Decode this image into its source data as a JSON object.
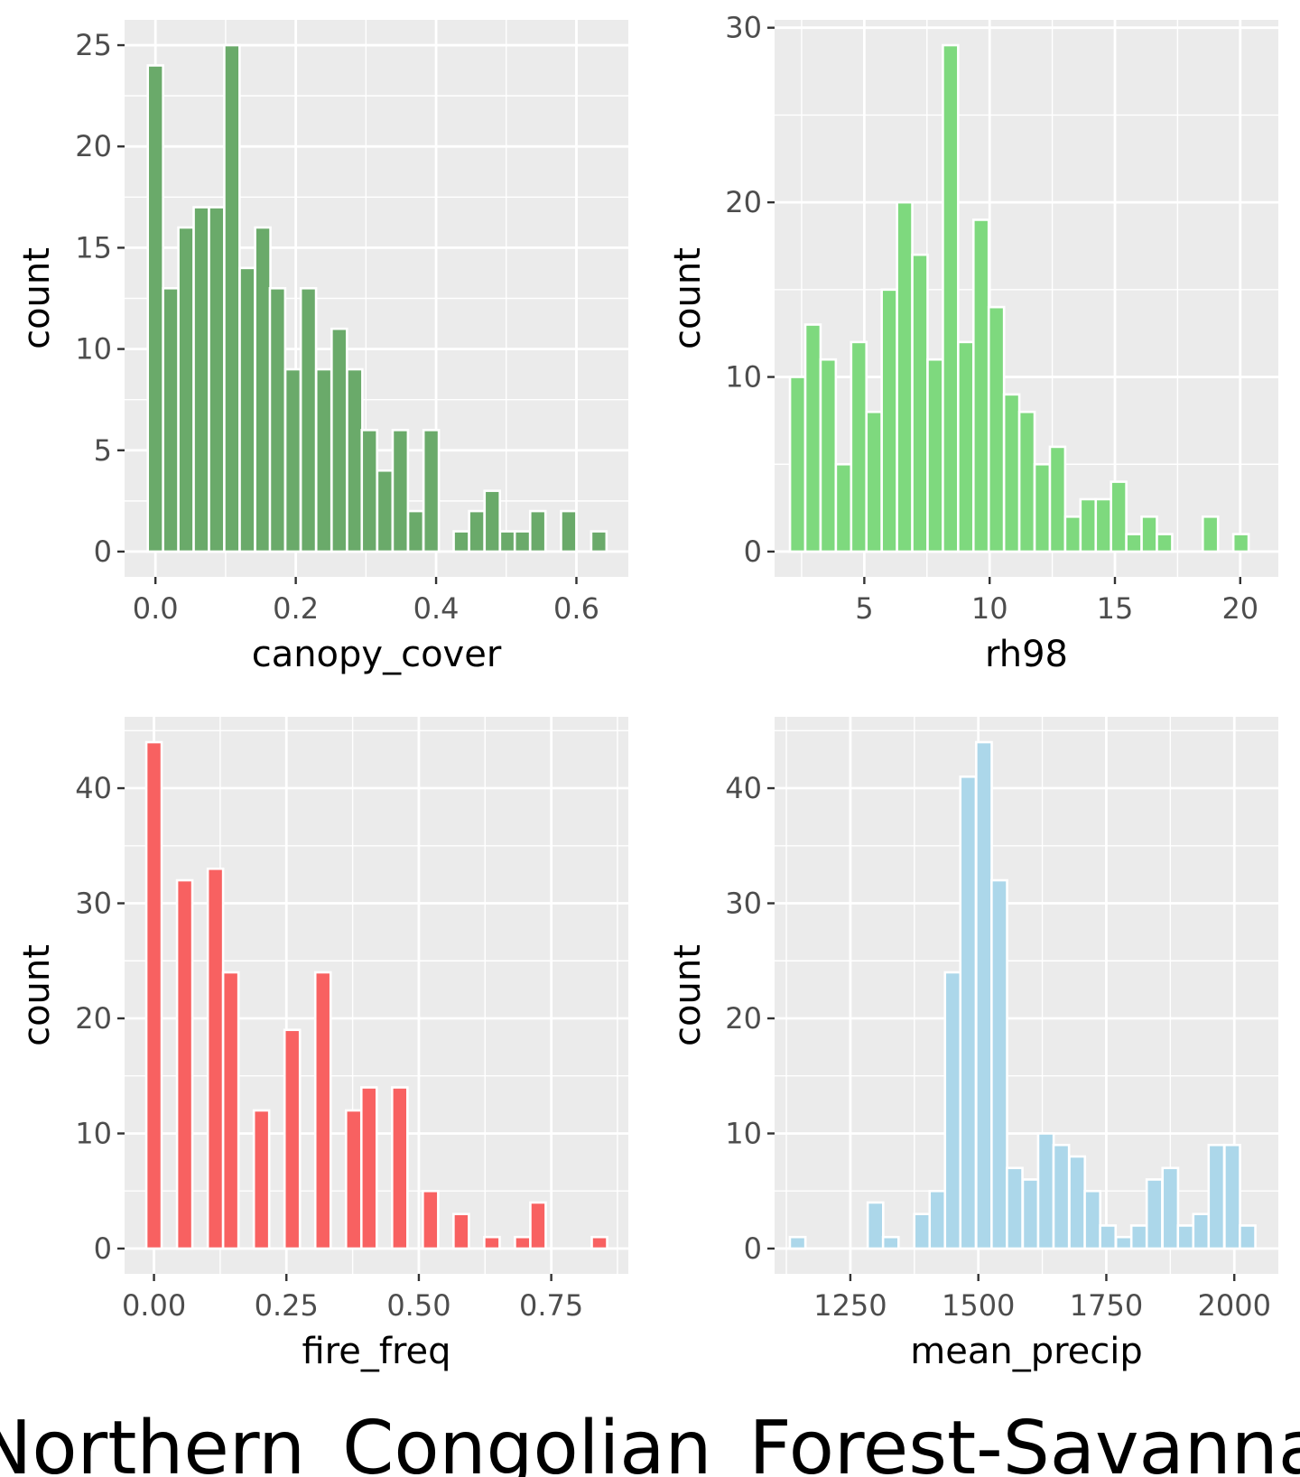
{
  "figure": {
    "title": "Northern_Congolian_Forest-Savanna"
  },
  "colors": {
    "panel_background": "#ebebeb",
    "grid": "#ffffff",
    "bar_outline": "#ffffff"
  },
  "chart_data": [
    {
      "type": "bar",
      "id": "canopy_cover",
      "xlabel": "canopy_cover",
      "ylabel": "count",
      "fill": "#6aaa6a",
      "xlim": [
        -0.044,
        0.674
      ],
      "ylim": [
        -1.25,
        26.25
      ],
      "xticks": [
        0,
        0.2,
        0.4,
        0.6
      ],
      "xtick_labels": [
        "0.0",
        "0.2",
        "0.4",
        "0.6"
      ],
      "yticks": [
        0,
        5,
        10,
        15,
        20,
        25
      ],
      "ytick_labels": [
        "0",
        "5",
        "10",
        "15",
        "20",
        "25"
      ],
      "bin_width": 0.0218,
      "bins": [
        [
          0.0,
          24
        ],
        [
          0.0218,
          13
        ],
        [
          0.0436,
          16
        ],
        [
          0.0654,
          17
        ],
        [
          0.0872,
          17
        ],
        [
          0.109,
          25
        ],
        [
          0.131,
          14
        ],
        [
          0.153,
          16
        ],
        [
          0.174,
          13
        ],
        [
          0.196,
          9
        ],
        [
          0.218,
          13
        ],
        [
          0.24,
          9
        ],
        [
          0.262,
          11
        ],
        [
          0.284,
          9
        ],
        [
          0.305,
          6
        ],
        [
          0.327,
          4
        ],
        [
          0.349,
          6
        ],
        [
          0.371,
          2
        ],
        [
          0.393,
          6
        ],
        [
          0.414,
          0
        ],
        [
          0.436,
          1
        ],
        [
          0.458,
          2
        ],
        [
          0.48,
          3
        ],
        [
          0.502,
          1
        ],
        [
          0.523,
          1
        ],
        [
          0.545,
          2
        ],
        [
          0.567,
          0
        ],
        [
          0.589,
          2
        ],
        [
          0.611,
          0
        ],
        [
          0.632,
          1
        ]
      ]
    },
    {
      "type": "bar",
      "id": "rh98",
      "xlabel": "rh98",
      "ylabel": "count",
      "fill": "#7ed97e",
      "xlim": [
        1.42,
        21.52
      ],
      "ylim": [
        -1.45,
        30.45
      ],
      "xticks": [
        5,
        10,
        15,
        20
      ],
      "xtick_labels": [
        "5",
        "10",
        "15",
        "20"
      ],
      "yticks": [
        0,
        10,
        20,
        30
      ],
      "ytick_labels": [
        "0",
        "10",
        "20",
        "30"
      ],
      "bin_width": 0.61,
      "bins": [
        [
          2.34,
          10
        ],
        [
          2.95,
          13
        ],
        [
          3.56,
          11
        ],
        [
          4.17,
          5
        ],
        [
          4.78,
          12
        ],
        [
          5.39,
          8
        ],
        [
          6.0,
          15
        ],
        [
          6.61,
          20
        ],
        [
          7.22,
          17
        ],
        [
          7.83,
          11
        ],
        [
          8.44,
          29
        ],
        [
          9.05,
          12
        ],
        [
          9.66,
          19
        ],
        [
          10.27,
          14
        ],
        [
          10.88,
          9
        ],
        [
          11.49,
          8
        ],
        [
          12.1,
          5
        ],
        [
          12.71,
          6
        ],
        [
          13.32,
          2
        ],
        [
          13.93,
          3
        ],
        [
          14.54,
          3
        ],
        [
          15.15,
          4
        ],
        [
          15.76,
          1
        ],
        [
          16.37,
          2
        ],
        [
          16.98,
          1
        ],
        [
          17.59,
          0
        ],
        [
          18.2,
          0
        ],
        [
          18.81,
          2
        ],
        [
          19.42,
          0
        ],
        [
          20.03,
          1
        ]
      ]
    },
    {
      "type": "bar",
      "id": "fire_freq",
      "xlabel": "fire_freq",
      "ylabel": "count",
      "fill": "#f86161",
      "xlim": [
        -0.0555,
        0.8955
      ],
      "ylim": [
        -2.2,
        46.2
      ],
      "xticks": [
        0,
        0.25,
        0.5,
        0.75
      ],
      "xtick_labels": [
        "0.00",
        "0.25",
        "0.50",
        "0.75"
      ],
      "yticks": [
        0,
        10,
        20,
        30,
        40
      ],
      "ytick_labels": [
        "0",
        "10",
        "20",
        "30",
        "40"
      ],
      "bin_width": 0.029,
      "bins": [
        [
          0.0,
          44
        ],
        [
          0.029,
          0
        ],
        [
          0.058,
          32
        ],
        [
          0.087,
          0
        ],
        [
          0.116,
          33
        ],
        [
          0.145,
          24
        ],
        [
          0.174,
          0
        ],
        [
          0.203,
          12
        ],
        [
          0.232,
          0
        ],
        [
          0.261,
          19
        ],
        [
          0.29,
          0
        ],
        [
          0.319,
          24
        ],
        [
          0.348,
          0
        ],
        [
          0.377,
          12
        ],
        [
          0.406,
          14
        ],
        [
          0.435,
          0
        ],
        [
          0.464,
          14
        ],
        [
          0.493,
          0
        ],
        [
          0.522,
          5
        ],
        [
          0.551,
          0
        ],
        [
          0.58,
          3
        ],
        [
          0.609,
          0
        ],
        [
          0.638,
          1
        ],
        [
          0.667,
          0
        ],
        [
          0.696,
          1
        ],
        [
          0.725,
          4
        ],
        [
          0.754,
          0
        ],
        [
          0.783,
          0
        ],
        [
          0.812,
          0
        ],
        [
          0.841,
          1
        ]
      ]
    },
    {
      "type": "bar",
      "id": "mean_precip",
      "xlabel": "mean_precip",
      "ylabel": "count",
      "fill": "#acd7ea",
      "xlim": [
        1102,
        2086
      ],
      "ylim": [
        -2.2,
        46.2
      ],
      "xticks": [
        1250,
        1500,
        1750,
        2000
      ],
      "xtick_labels": [
        "1250",
        "1500",
        "1750",
        "2000"
      ],
      "yticks": [
        0,
        10,
        20,
        30,
        40
      ],
      "ytick_labels": [
        "0",
        "10",
        "20",
        "30",
        "40"
      ],
      "bin_width": 30.3,
      "bins": [
        [
          1147,
          1
        ],
        [
          1177,
          0
        ],
        [
          1208,
          0
        ],
        [
          1238,
          0
        ],
        [
          1268,
          0
        ],
        [
          1299,
          4
        ],
        [
          1329,
          1
        ],
        [
          1359,
          0
        ],
        [
          1390,
          3
        ],
        [
          1420,
          5
        ],
        [
          1450,
          24
        ],
        [
          1480,
          41
        ],
        [
          1511,
          44
        ],
        [
          1541,
          32
        ],
        [
          1571,
          7
        ],
        [
          1602,
          6
        ],
        [
          1632,
          10
        ],
        [
          1662,
          9
        ],
        [
          1693,
          8
        ],
        [
          1723,
          5
        ],
        [
          1753,
          2
        ],
        [
          1784,
          1
        ],
        [
          1814,
          2
        ],
        [
          1844,
          6
        ],
        [
          1875,
          7
        ],
        [
          1905,
          2
        ],
        [
          1935,
          3
        ],
        [
          1965,
          9
        ],
        [
          1996,
          9
        ],
        [
          2026,
          2
        ]
      ]
    }
  ]
}
